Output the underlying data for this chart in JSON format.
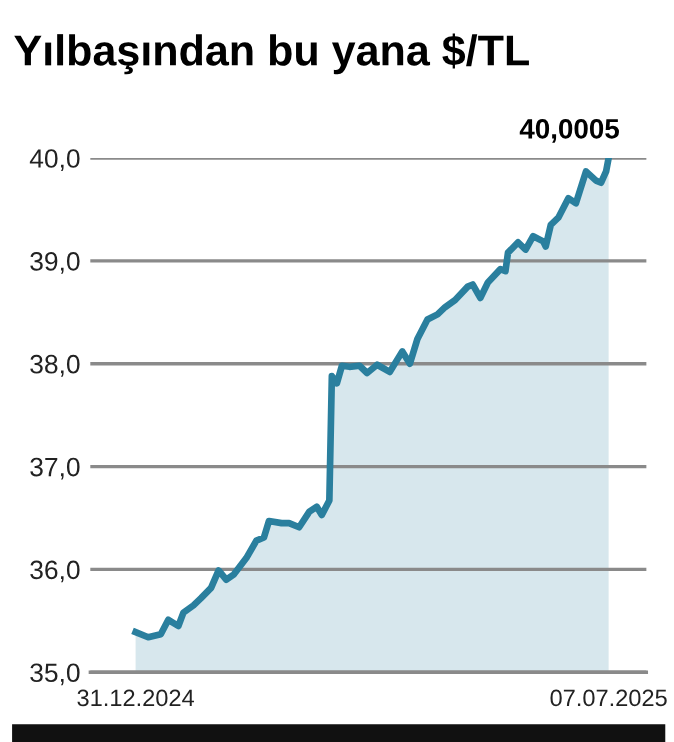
{
  "chart_data": {
    "type": "area",
    "title": "Yılbaşından bu yana $/TL",
    "x": [
      "2024-12-31",
      "2025-01-05",
      "2025-01-10",
      "2025-01-13",
      "2025-01-17",
      "2025-01-19",
      "2025-01-23",
      "2025-01-26",
      "2025-01-30",
      "2025-02-02",
      "2025-02-05",
      "2025-02-08",
      "2025-02-13",
      "2025-02-17",
      "2025-02-20",
      "2025-02-22",
      "2025-02-27",
      "2025-03-02",
      "2025-03-06",
      "2025-03-10",
      "2025-03-13",
      "2025-03-15",
      "2025-03-18",
      "2025-03-19",
      "2025-03-21",
      "2025-03-23",
      "2025-03-26",
      "2025-03-30",
      "2025-04-02",
      "2025-04-06",
      "2025-04-11",
      "2025-04-14",
      "2025-04-16",
      "2025-04-19",
      "2025-04-22",
      "2025-04-26",
      "2025-04-30",
      "2025-05-03",
      "2025-05-07",
      "2025-05-12",
      "2025-05-14",
      "2025-05-17",
      "2025-05-20",
      "2025-05-25",
      "2025-05-27",
      "2025-05-28",
      "2025-06-01",
      "2025-06-04",
      "2025-06-07",
      "2025-06-11",
      "2025-06-12",
      "2025-06-14",
      "2025-06-17",
      "2025-06-21",
      "2025-06-24",
      "2025-06-28",
      "2025-07-02",
      "2025-07-04",
      "2025-07-06",
      "2025-07-07"
    ],
    "series": [
      {
        "color": "#2a7f9e",
        "values": [
          35.39,
          35.34,
          35.37,
          35.51,
          35.45,
          35.58,
          35.65,
          35.72,
          35.82,
          35.99,
          35.9,
          35.95,
          36.11,
          36.28,
          36.31,
          36.47,
          36.45,
          36.45,
          36.41,
          36.56,
          36.61,
          36.53,
          36.67,
          37.88,
          37.81,
          37.98,
          37.97,
          37.98,
          37.91,
          37.99,
          37.92,
          38.04,
          38.12,
          38.0,
          38.24,
          38.43,
          38.48,
          38.55,
          38.62,
          38.75,
          38.77,
          38.64,
          38.79,
          38.92,
          38.9,
          39.08,
          39.18,
          39.11,
          39.24,
          39.19,
          39.14,
          39.35,
          39.42,
          39.61,
          39.56,
          39.87,
          39.78,
          39.76,
          39.87,
          40.0
        ]
      }
    ],
    "xlim": [
      "2024-12-13",
      "2025-07-22"
    ],
    "xticks": [
      {
        "value": "2024-12-31",
        "label": "31.12.2024"
      },
      {
        "value": "2025-07-07",
        "label": "07.07.2025"
      }
    ],
    "ylim": [
      35,
      40
    ],
    "yticks": [
      {
        "value": 35,
        "label": "35,0"
      },
      {
        "value": 36,
        "label": "36,0"
      },
      {
        "value": 37,
        "label": "37,0"
      },
      {
        "value": 38,
        "label": "38,0"
      },
      {
        "value": 39,
        "label": "39,0"
      },
      {
        "value": 40,
        "label": "40,0"
      }
    ],
    "grid": "y",
    "legend": false,
    "annotations": [
      {
        "text": "40,0005",
        "x": "2025-07-07",
        "y": 40.0
      }
    ]
  }
}
